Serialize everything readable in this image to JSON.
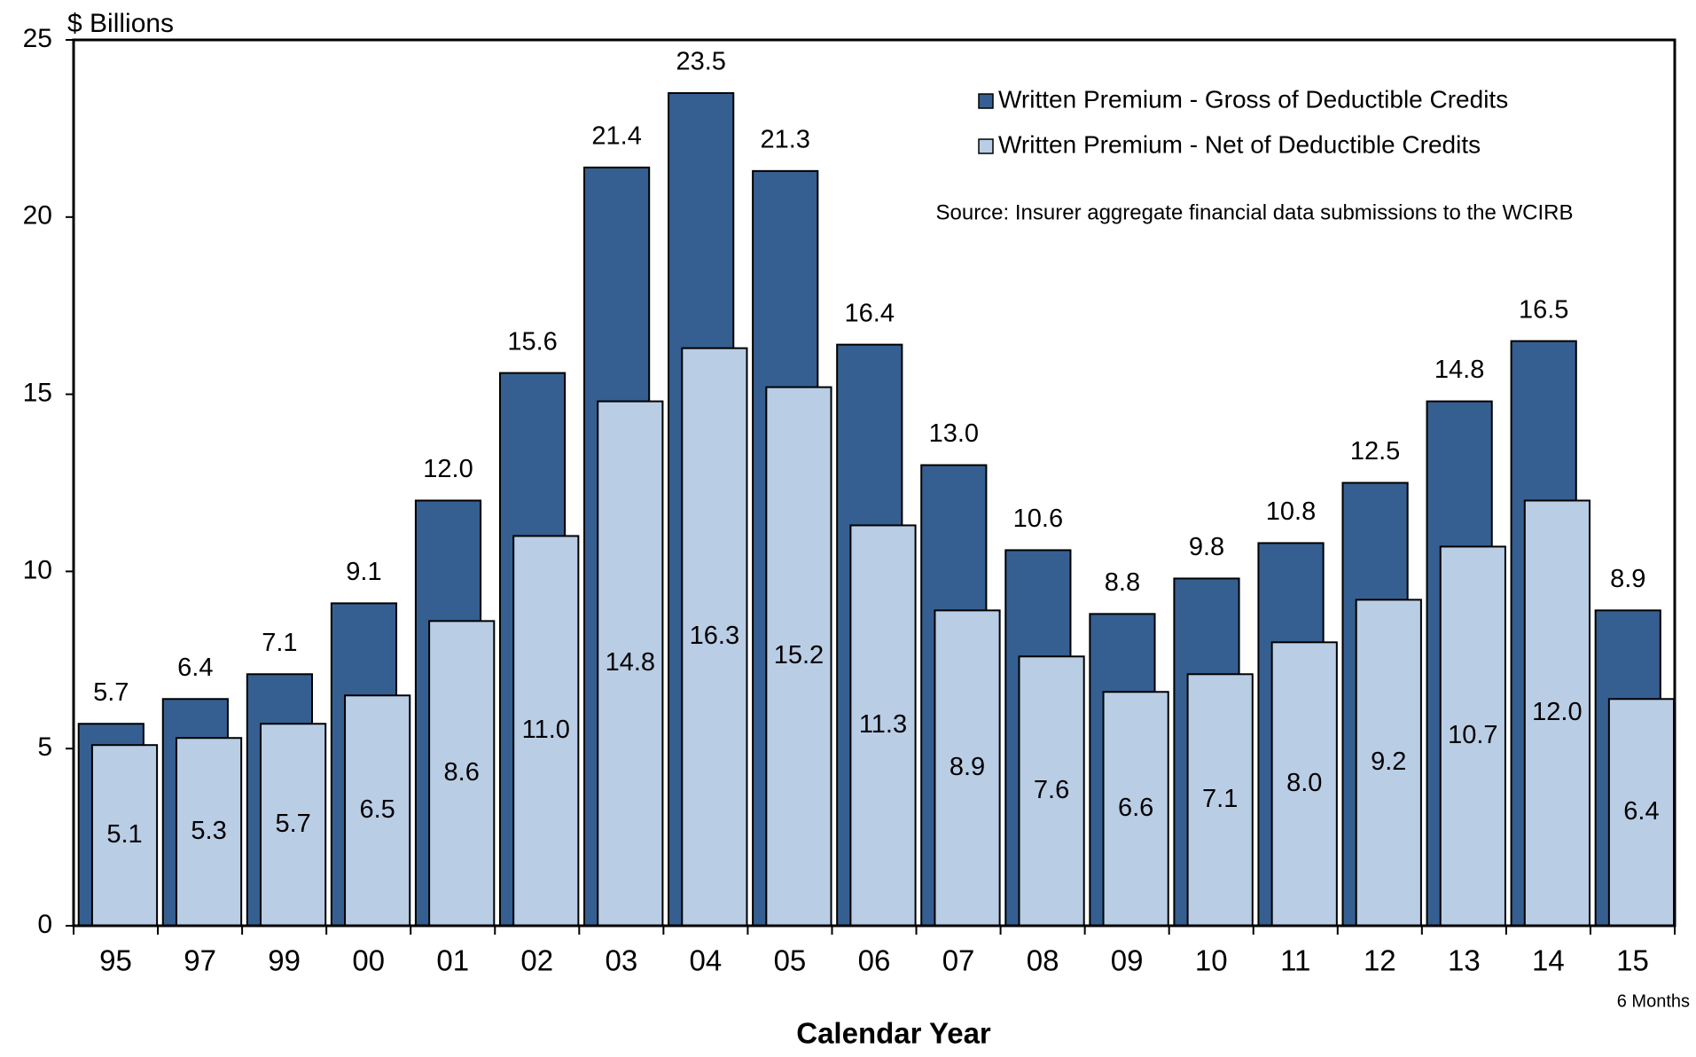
{
  "chart_data": {
    "type": "bar",
    "ylabel": "$ Billions",
    "xlabel": "Calendar Year",
    "annotations": [
      "Source: Insurer aggregate financial data submissions to the WCIRB",
      "6 Months"
    ],
    "categories": [
      "95",
      "97",
      "99",
      "00",
      "01",
      "02",
      "03",
      "04",
      "05",
      "06",
      "07",
      "08",
      "09",
      "10",
      "11",
      "12",
      "13",
      "14",
      "15"
    ],
    "series": [
      {
        "name": "Written Premium - Gross of Deductible Credits",
        "color": "#355f91",
        "values": [
          5.7,
          6.4,
          7.1,
          9.1,
          12.0,
          15.6,
          21.4,
          23.5,
          21.3,
          16.4,
          13.0,
          10.6,
          8.8,
          9.8,
          10.8,
          12.5,
          14.8,
          16.5,
          8.9
        ],
        "value_labels": [
          "5.7",
          "6.4",
          "7.1",
          "9.1",
          "12.0",
          "15.6",
          "21.4",
          "23.5",
          "21.3",
          "16.4",
          "13.0",
          "10.6",
          "8.8",
          "9.8",
          "10.8",
          "12.5",
          "14.8",
          "16.5",
          "8.9"
        ]
      },
      {
        "name": "Written Premium - Net of Deductible Credits",
        "color": "#b9cde5",
        "values": [
          5.1,
          5.3,
          5.7,
          6.5,
          8.6,
          11.0,
          14.8,
          16.3,
          15.2,
          11.3,
          8.9,
          7.6,
          6.6,
          7.1,
          8.0,
          9.2,
          10.7,
          12.0,
          6.4
        ],
        "value_labels": [
          "5.1",
          "5.3",
          "5.7",
          "6.5",
          "8.6",
          "11.0",
          "14.8",
          "16.3",
          "15.2",
          "11.3",
          "8.9",
          "7.6",
          "6.6",
          "7.1",
          "8.0",
          "9.2",
          "10.7",
          "12.0",
          "6.4"
        ]
      }
    ],
    "ylim": [
      0,
      25
    ],
    "yticks": [
      0,
      5,
      10,
      15,
      20,
      25
    ],
    "grid": false,
    "legend": "upper right"
  }
}
